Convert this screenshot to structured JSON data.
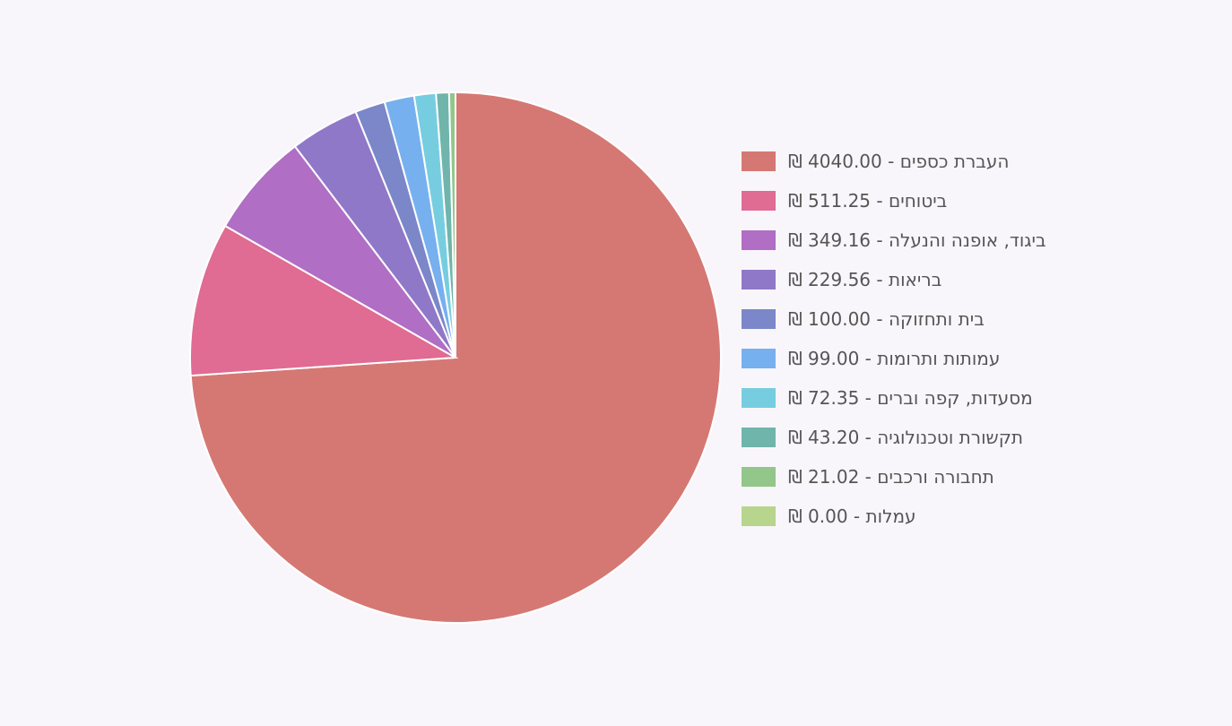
{
  "chart_data": {
    "type": "pie",
    "categories": [
      "העברת כספים - 4040.00 ₪",
      "ביטוחים - 511.25 ₪",
      "ביגוד, אופנה והנעלה - 349.16 ₪",
      "בריאות - 229.56 ₪",
      "בית ותחזוקה - 100.00 ₪",
      "עמותות ותרומות - 99.00 ₪",
      "מסעדות, קפה וברים - 72.35 ₪",
      "תקשורת וטכנולוגיה - 43.20 ₪",
      "תחבורה ורכבים - 21.02 ₪",
      "עמלות - 0.00 ₪"
    ],
    "values": [
      4040.0,
      511.25,
      349.16,
      229.56,
      100.0,
      99.0,
      72.35,
      43.2,
      21.02,
      0.0
    ],
    "colors": [
      "#d57873",
      "#e06b93",
      "#b06ec4",
      "#9078c8",
      "#7b87c8",
      "#77b0ef",
      "#77cde0",
      "#6fb5ab",
      "#92c68a",
      "#b7d58c"
    ],
    "legend": "right"
  }
}
